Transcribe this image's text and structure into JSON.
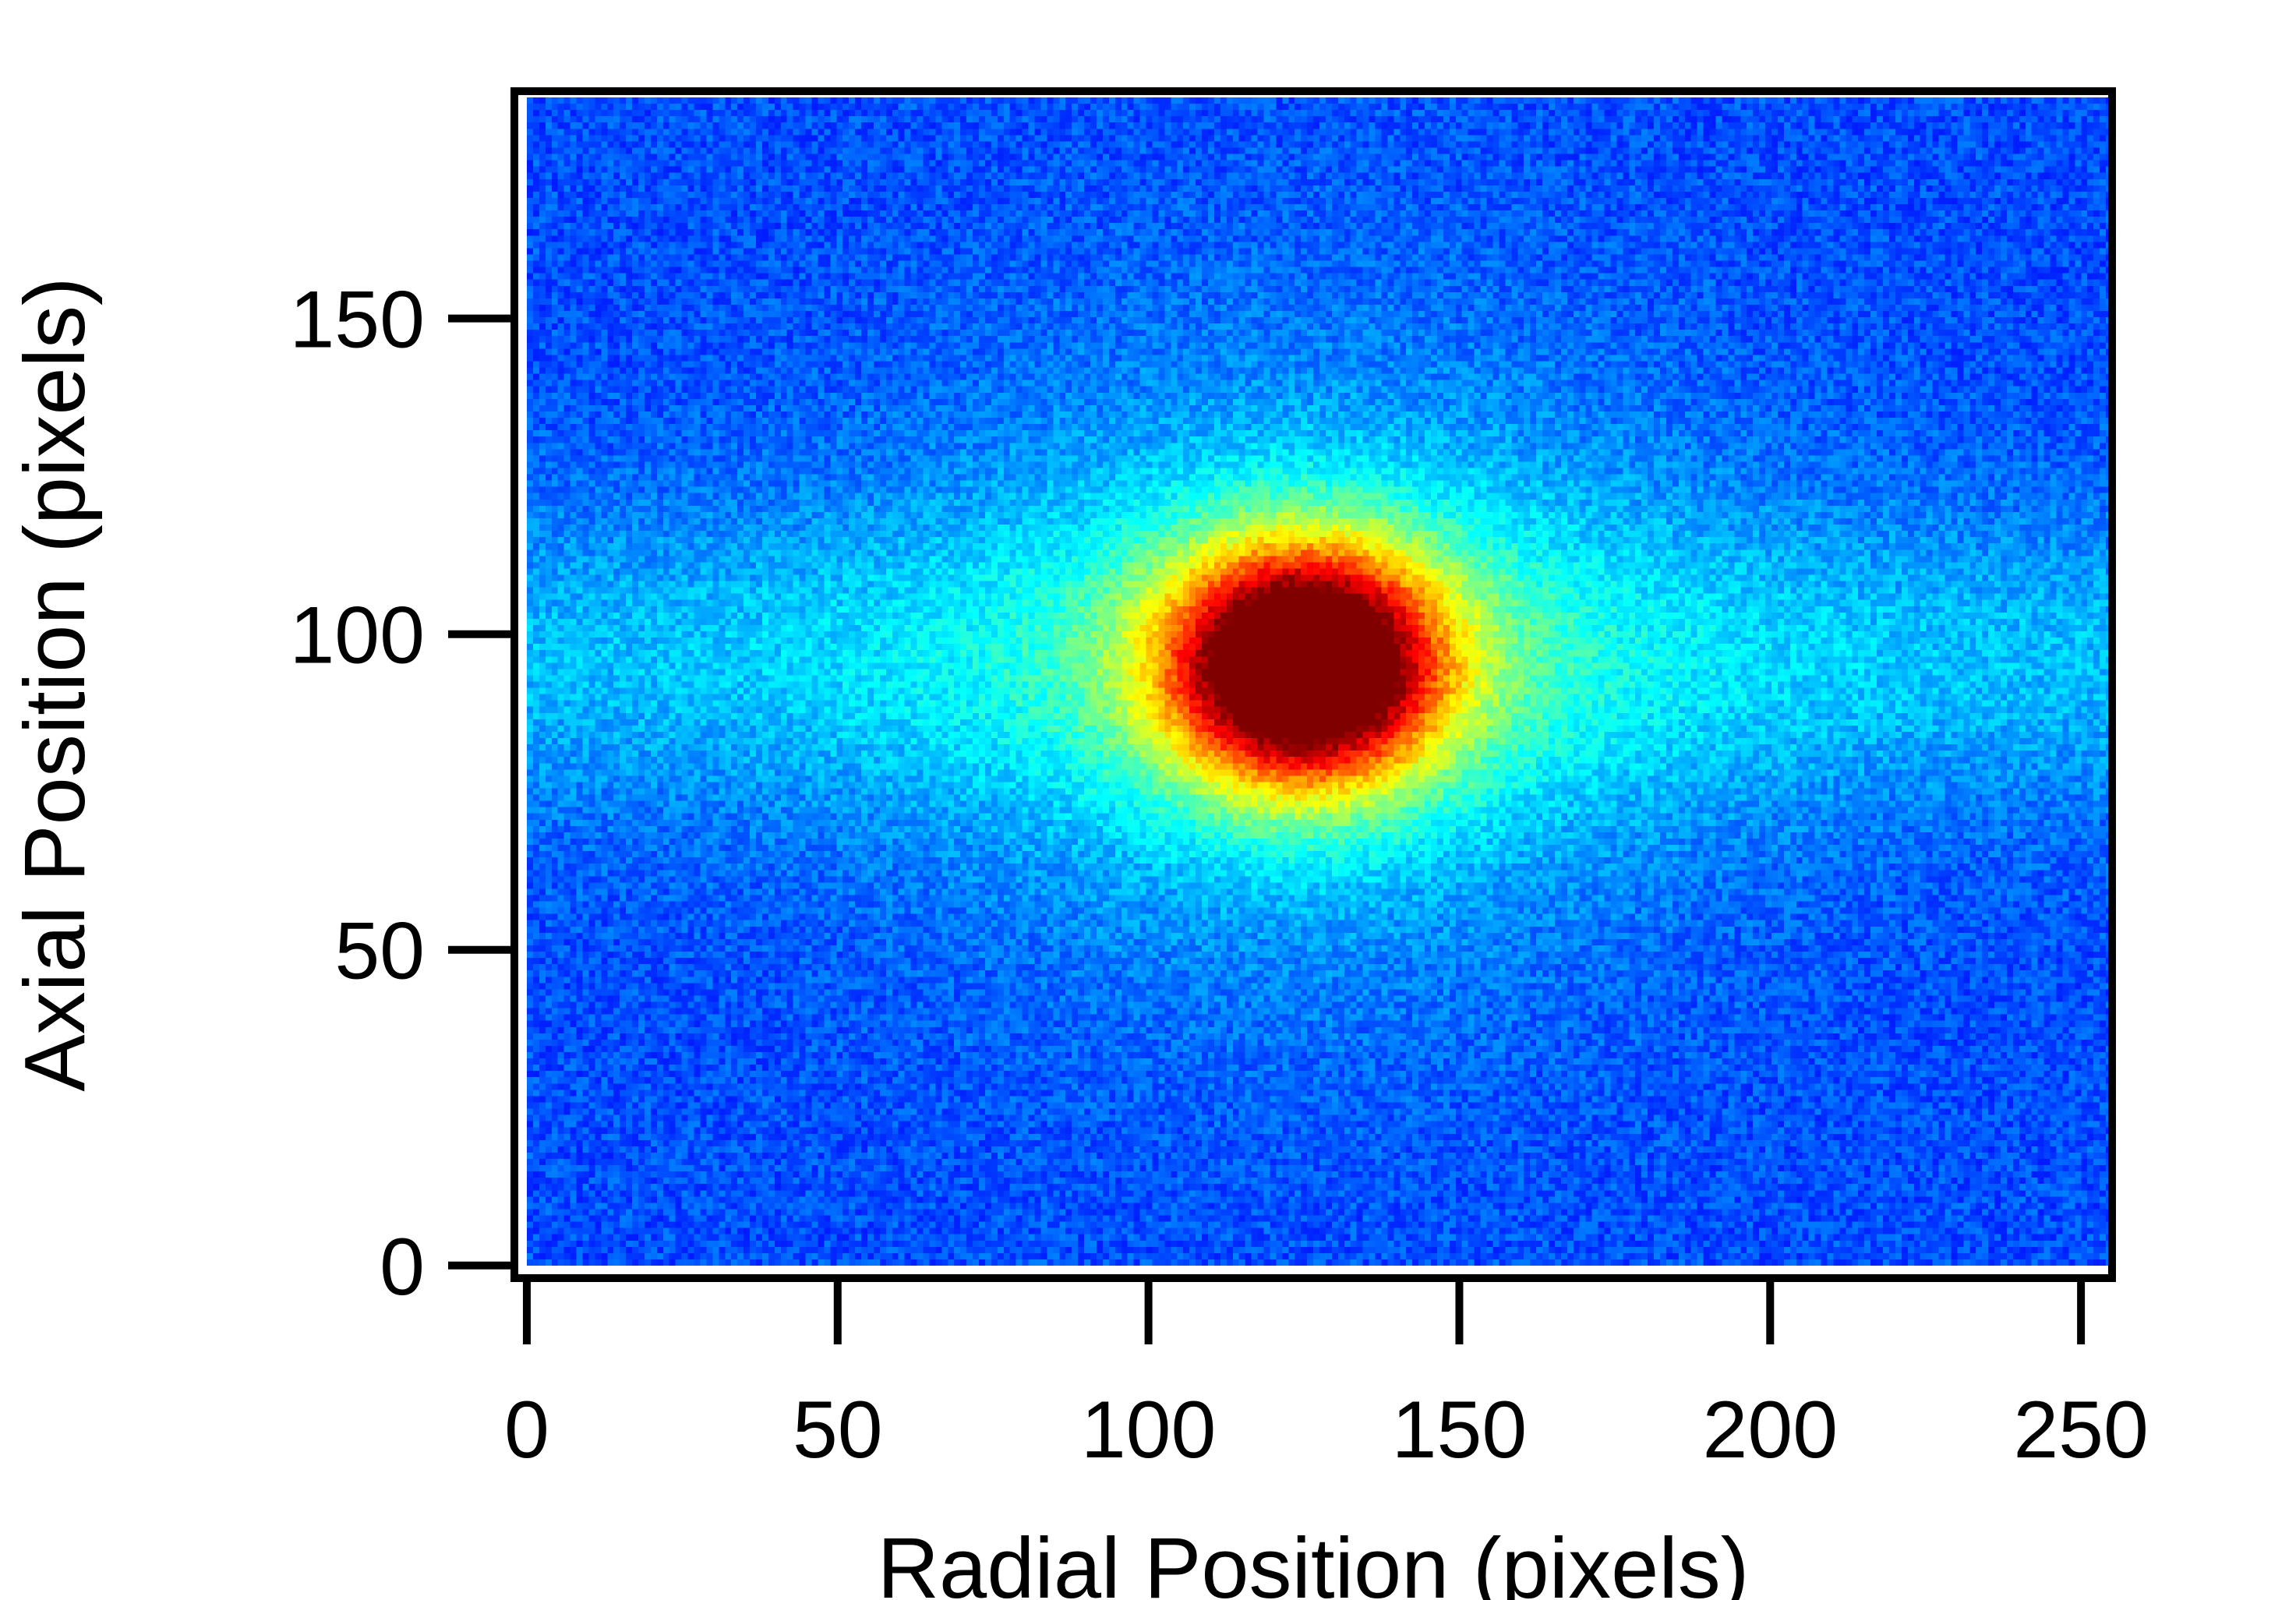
{
  "chart_data": {
    "type": "heatmap",
    "title": "",
    "xlabel": "Radial Position (pixels)",
    "ylabel": "Axial Position (pixels)",
    "xlim": [
      -2,
      255
    ],
    "ylim": [
      -2,
      186
    ],
    "x_ticks": [
      0,
      50,
      100,
      150,
      200,
      250
    ],
    "x_tick_labels": [
      "0",
      "50",
      "100",
      "150",
      "200",
      "250"
    ],
    "y_ticks": [
      0,
      50,
      100,
      150
    ],
    "y_tick_labels": [
      "0",
      "50",
      "100",
      "150"
    ],
    "grid": false,
    "legend": "none",
    "colormap": "jet",
    "image_extent": {
      "x": [
        0,
        255
      ],
      "y": [
        0,
        185
      ]
    },
    "features": [
      {
        "name": "central peak",
        "center_x": 125,
        "center_y": 95,
        "sigma_x": 15,
        "sigma_y": 13,
        "relative_intensity": 0.93
      },
      {
        "name": "halo",
        "center_x": 125,
        "center_y": 95,
        "sigma_x": 42,
        "sigma_y": 33,
        "relative_intensity": 0.16
      },
      {
        "name": "axial band",
        "center_y": 96,
        "sigma_y": 17,
        "extends_across_x": true,
        "relative_intensity": 0.11
      }
    ],
    "background_relative_intensity": 0.2,
    "noise_amplitude": 0.05
  }
}
